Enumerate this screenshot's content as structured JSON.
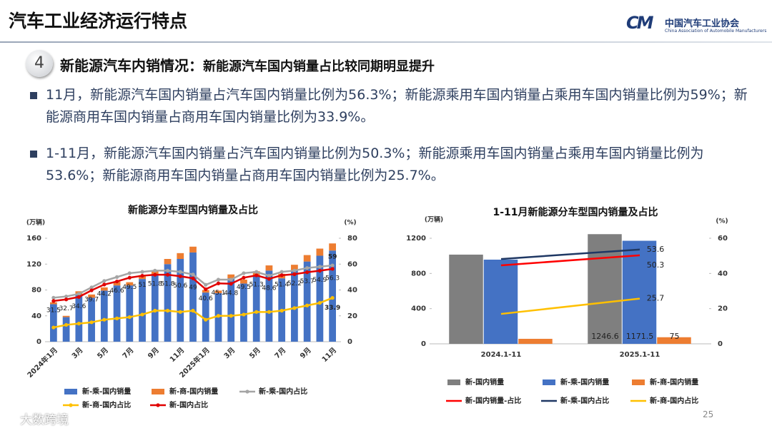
{
  "header": {
    "title": "汽车工业经济运行特点",
    "logo_cn": "中国汽车工业协会",
    "logo_en": "China Association of Automobile Manufacturers",
    "logo_mark": "CM"
  },
  "section": {
    "number": "4",
    "heading": "新能源汽车内销情况：",
    "subheading": "新能源汽车国内销量占比较同期明显提升"
  },
  "bullets": [
    "11月，新能源汽车国内销量占汽车国内销量比例为56.3%；新能源乘用车国内销量占乘用车国内销量比例为59%；新能源商用车国内销量占商用车国内销量比例为33.9%。",
    "1-11月，新能源汽车国内销量占汽车国内销量比例为50.3%；新能源乘用车国内销量占乘用车国内销量比例为53.6%；新能源商用车国内销量占商用车国内销量比例为25.7%。"
  ],
  "page_number": "25",
  "watermark": "大数跨境",
  "chart_data": [
    {
      "type": "bar",
      "stacked": true,
      "title": "新能源分车型国内销量及占比",
      "ylabel": "(万辆)",
      "y2label": "(%)",
      "categories": [
        "2024年1月",
        null,
        "3月",
        null,
        "5月",
        null,
        "7月",
        null,
        "9月",
        null,
        "11月",
        null,
        "2025年1月",
        null,
        "3月",
        null,
        "5月",
        null,
        "7月",
        null,
        "9月",
        null,
        "11月"
      ],
      "ylim": [
        0,
        160
      ],
      "yticks": [
        0,
        40,
        80,
        120,
        160
      ],
      "y2lim": [
        0,
        80
      ],
      "y2ticks": [
        0,
        20,
        40,
        60,
        80
      ],
      "series": [
        {
          "name": "新-乘-国内销量",
          "color": "#4472c4",
          "values": [
            58,
            38,
            73,
            68,
            79,
            87,
            87,
            97,
            103,
            120,
            128,
            138,
            76,
            75,
            98,
            90,
            102,
            110,
            98,
            110,
            124,
            133,
            141
          ]
        },
        {
          "name": "新-商-国内销量",
          "color": "#ed7d31",
          "values": [
            3,
            2,
            5,
            5,
            5,
            6,
            5,
            6,
            6,
            8,
            9,
            9,
            4,
            4,
            6,
            6,
            7,
            8,
            7,
            9,
            10,
            11,
            11
          ]
        },
        {
          "name": "新-乘-国内占比",
          "type": "line",
          "axis": "y2",
          "color": "#a5a5a5",
          "values": [
            34,
            35,
            37,
            42,
            47,
            50,
            53,
            54,
            55,
            55,
            54,
            52,
            44,
            48,
            48,
            53,
            54,
            51,
            54,
            55,
            57,
            58,
            59
          ],
          "value_labels": [
            null,
            null,
            null,
            null,
            null,
            null,
            null,
            null,
            null,
            null,
            null,
            null,
            null,
            null,
            null,
            null,
            null,
            null,
            null,
            null,
            null,
            null,
            "59"
          ]
        },
        {
          "name": "新-商-国内占比",
          "type": "line",
          "axis": "y2",
          "color": "#ffc000",
          "values": [
            11,
            13,
            14,
            15,
            17,
            18,
            19,
            21,
            24,
            24,
            23,
            24,
            17,
            20,
            20,
            21,
            23,
            23,
            24,
            26,
            28,
            30,
            33.9
          ],
          "value_labels": [
            null,
            null,
            null,
            null,
            null,
            null,
            null,
            null,
            null,
            null,
            null,
            null,
            null,
            null,
            null,
            null,
            null,
            null,
            null,
            null,
            null,
            null,
            "33.9"
          ]
        },
        {
          "name": "新-国内占比",
          "type": "line",
          "axis": "y2",
          "color": "#e00000",
          "values": [
            31.5,
            32.7,
            34.6,
            39.7,
            44.2,
            46.6,
            49.5,
            51,
            51.8,
            51.8,
            50.6,
            49,
            40.6,
            45.1,
            44.8,
            49.5,
            51.3,
            48.6,
            51.4,
            52.2,
            53.7,
            54.9,
            56.3
          ],
          "value_labels": [
            "31.5",
            "32.7",
            "34.6",
            "39.7",
            "44.2",
            "46.6",
            "49.5",
            "51",
            "51.8",
            "51.8",
            "50.6",
            "49",
            "40.6",
            "45.1",
            "44.8",
            "49.5",
            "51.3",
            "48.6",
            "51.4",
            "52.2",
            "53.7",
            "54.9",
            "56.3"
          ]
        }
      ]
    },
    {
      "type": "bar",
      "stacked": false,
      "title": "1-11月新能源分车型国内销量及占比",
      "ylabel": "(万辆)",
      "y2label": "(%)",
      "categories": [
        "2024.1-11",
        "2025.1-11"
      ],
      "ylim": [
        0,
        1200
      ],
      "yticks": [
        0,
        400,
        800,
        1200
      ],
      "y2lim": [
        0,
        60
      ],
      "y2ticks": [
        0,
        20,
        40,
        60
      ],
      "series": [
        {
          "name": "新-国内销量",
          "color": "#7f7f7f",
          "values": [
            1014,
            1246.6
          ],
          "value_labels": [
            null,
            "1246.6"
          ]
        },
        {
          "name": "新-乘-国内销量",
          "color": "#4472c4",
          "values": [
            957,
            1171.5
          ],
          "value_labels": [
            null,
            "1171.5"
          ]
        },
        {
          "name": "新-商-国内销量",
          "color": "#ed7d31",
          "values": [
            57,
            75
          ],
          "value_labels": [
            null,
            "75"
          ]
        },
        {
          "name": "新-国内销量-占比",
          "type": "line",
          "axis": "y2",
          "color": "#ff0000",
          "values": [
            44.6,
            50.3
          ],
          "value_labels": [
            null,
            "50.3"
          ]
        },
        {
          "name": "新-乘-国内占比",
          "type": "line",
          "axis": "y2",
          "color": "#1f3864",
          "values": [
            48.2,
            53.6
          ],
          "value_labels": [
            null,
            "53.6"
          ]
        },
        {
          "name": "新-商-国内占比",
          "type": "line",
          "axis": "y2",
          "color": "#ffc000",
          "values": [
            17,
            25.7
          ],
          "value_labels": [
            null,
            "25.7"
          ]
        }
      ]
    }
  ]
}
